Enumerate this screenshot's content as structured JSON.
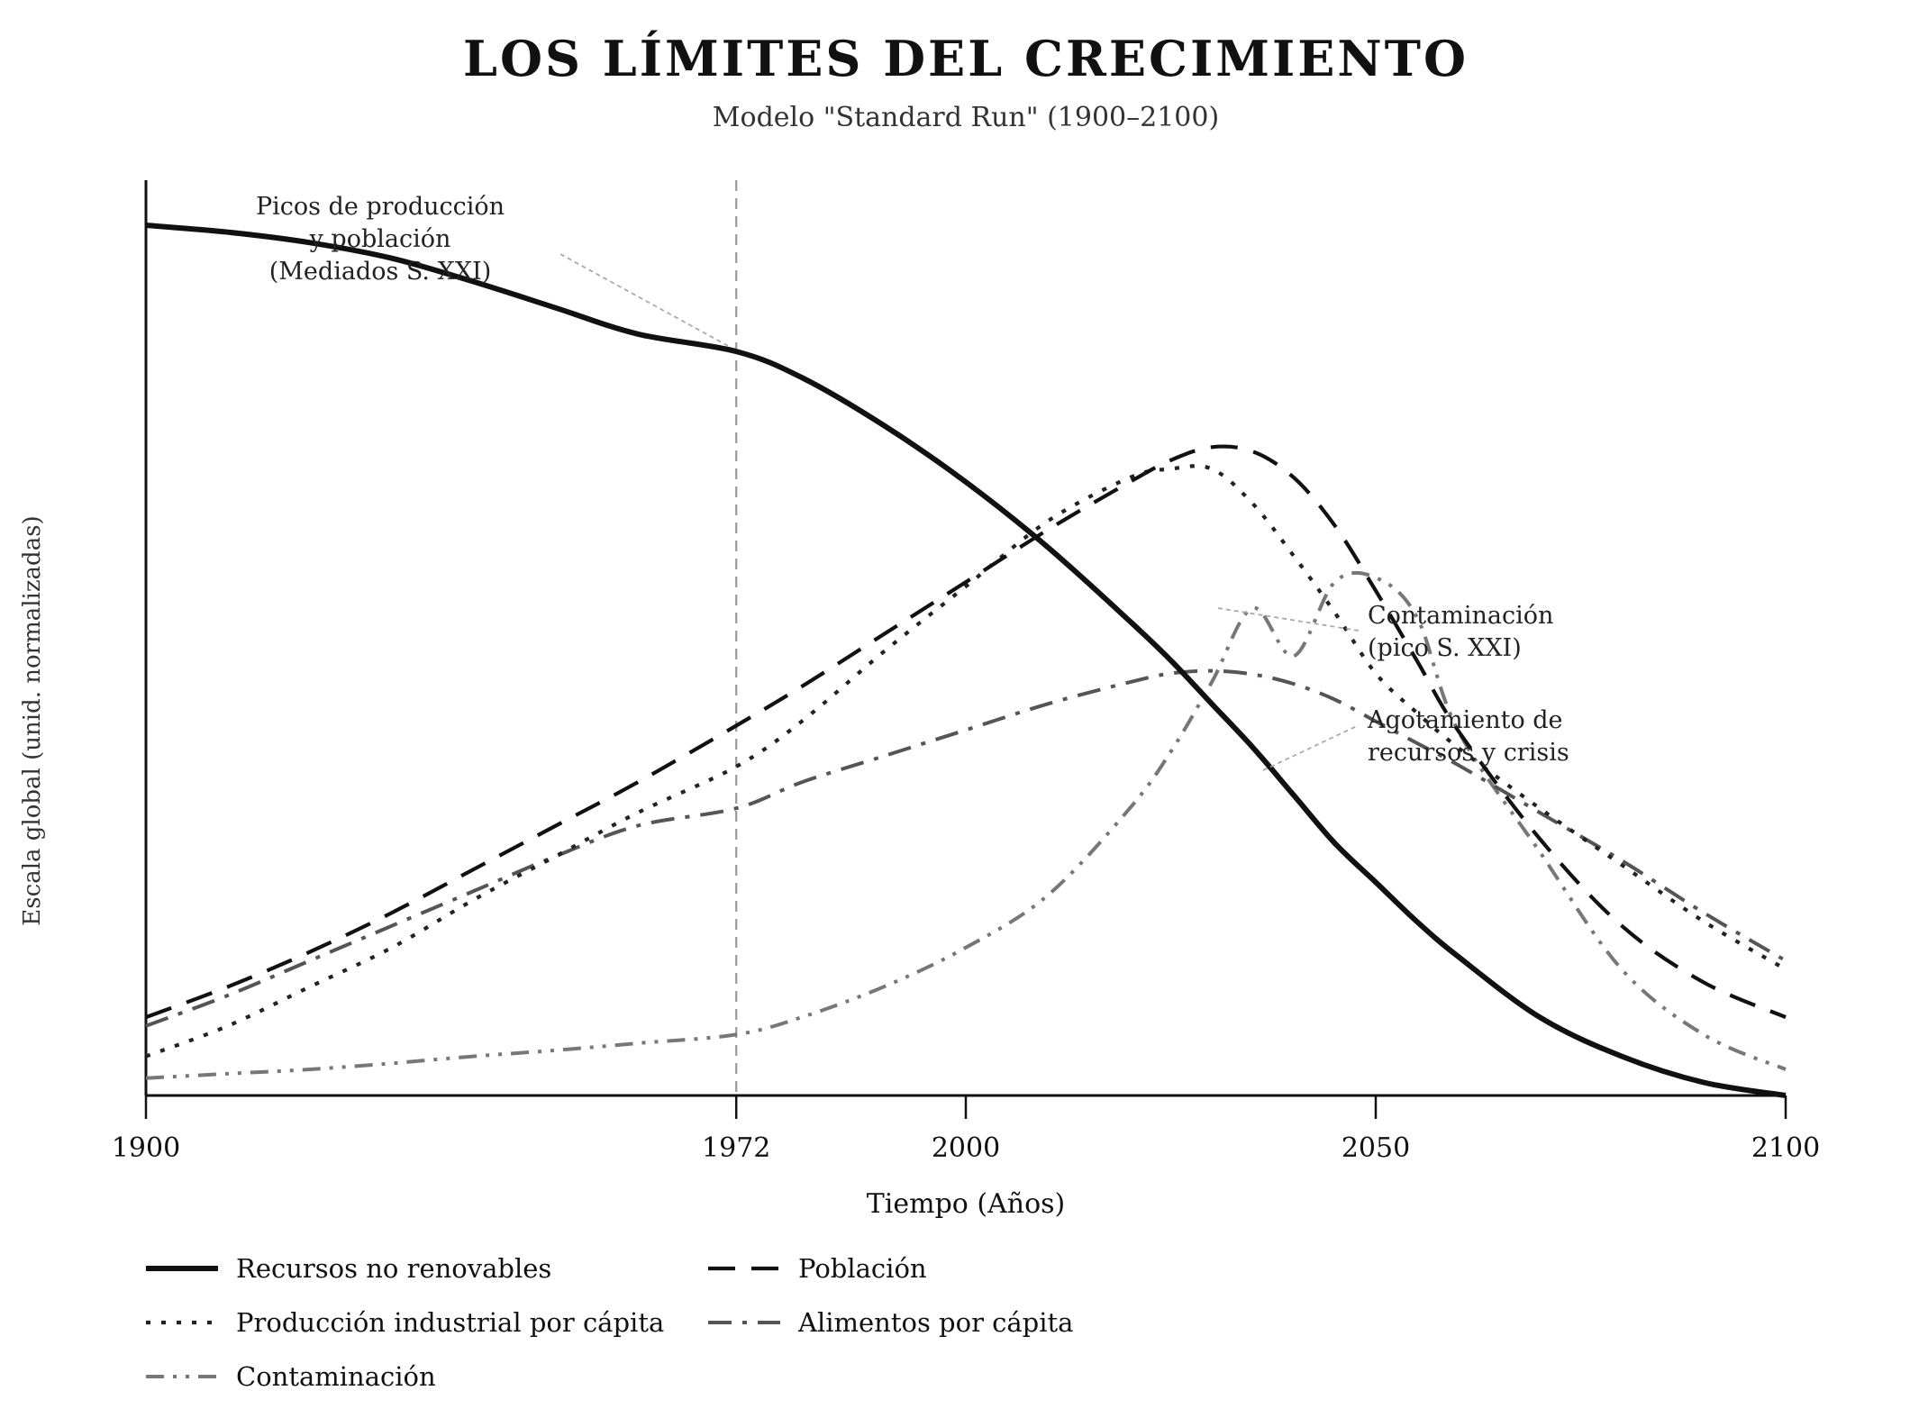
{
  "chart_data": {
    "type": "line",
    "title": "LOS LÍMITES DEL CRECIMIENTO",
    "subtitle": "Modelo \"Standard Run\" (1900–2100)",
    "xlabel": "Tiempo (Años)",
    "ylabel": "Escala global (unid. normalizadas)",
    "x_ticks": [
      1900,
      1972,
      2000,
      2050,
      2100
    ],
    "xlim": [
      1900,
      2100
    ],
    "ylim": [
      0,
      1
    ],
    "grid": false,
    "y_tick_labels": false,
    "reference_line": {
      "x": 1972
    },
    "legend_position": "bottom",
    "x": [
      1900,
      1910,
      1920,
      1930,
      1940,
      1950,
      1960,
      1972,
      1980,
      1990,
      2000,
      2010,
      2020,
      2025,
      2030,
      2035,
      2040,
      2045,
      2050,
      2055,
      2060,
      2070,
      2080,
      2090,
      2100
    ],
    "series": [
      {
        "name": "Recursos no renovables",
        "style": "solid",
        "color": "#111111",
        "values": [
          1.0,
          0.992,
          0.98,
          0.962,
          0.935,
          0.905,
          0.875,
          0.855,
          0.825,
          0.77,
          0.705,
          0.63,
          0.545,
          0.5,
          0.45,
          0.4,
          0.345,
          0.29,
          0.245,
          0.2,
          0.16,
          0.09,
          0.045,
          0.015,
          0.0
        ]
      },
      {
        "name": "Población",
        "style": "dashed",
        "color": "#111111",
        "values": [
          0.09,
          0.125,
          0.165,
          0.21,
          0.26,
          0.31,
          0.36,
          0.425,
          0.47,
          0.53,
          0.59,
          0.65,
          0.705,
          0.73,
          0.745,
          0.74,
          0.71,
          0.655,
          0.58,
          0.5,
          0.42,
          0.295,
          0.195,
          0.13,
          0.09
        ]
      },
      {
        "name": "Producción industrial por cápita",
        "style": "dotted",
        "color": "#222222",
        "values": [
          0.045,
          0.08,
          0.125,
          0.17,
          0.225,
          0.275,
          0.325,
          0.378,
          0.43,
          0.51,
          0.585,
          0.66,
          0.71,
          0.72,
          0.72,
          0.68,
          0.62,
          0.555,
          0.485,
          0.44,
          0.4,
          0.33,
          0.265,
          0.2,
          0.145
        ]
      },
      {
        "name": "Alimentos por cápita",
        "style": "dashdot",
        "color": "#555555",
        "values": [
          0.08,
          0.115,
          0.155,
          0.195,
          0.235,
          0.275,
          0.31,
          0.33,
          0.36,
          0.39,
          0.42,
          0.45,
          0.475,
          0.485,
          0.488,
          0.484,
          0.473,
          0.455,
          0.43,
          0.405,
          0.38,
          0.325,
          0.27,
          0.21,
          0.155
        ]
      },
      {
        "name": "Contaminación",
        "style": "dashdotdot",
        "color": "#777777",
        "values": [
          0.02,
          0.025,
          0.03,
          0.037,
          0.045,
          0.052,
          0.06,
          0.07,
          0.09,
          0.125,
          0.17,
          0.23,
          0.33,
          0.395,
          0.475,
          0.56,
          0.505,
          0.59,
          0.595,
          0.55,
          0.42,
          0.28,
          0.145,
          0.07,
          0.03
        ]
      }
    ],
    "annotations": [
      {
        "text": "Picos de producción\ny población\n(Mediados S. XXI)",
        "x": 1972,
        "y": 0.855
      },
      {
        "text": "Contaminación\n(pico S. XXI)",
        "x": 2045,
        "y": 0.58
      },
      {
        "text": "Agotamiento de\nrecursos y crisis",
        "x": 2050,
        "y": 0.375
      }
    ]
  },
  "colors": {
    "axis": "#111111",
    "reference_line": "#999999",
    "leader_line": "#aaaaaa"
  }
}
